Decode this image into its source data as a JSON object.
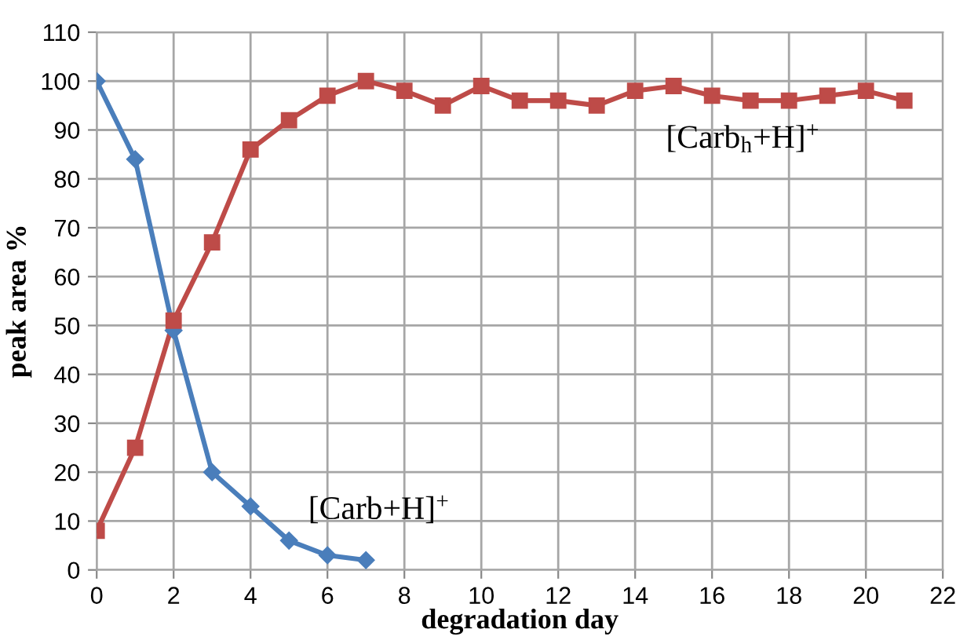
{
  "chart_data": {
    "type": "line",
    "xlabel": "degradation day",
    "ylabel": "peak area %",
    "x": [
      0,
      1,
      2,
      3,
      4,
      5,
      6,
      7,
      8,
      9,
      10,
      11,
      12,
      13,
      14,
      15,
      16,
      17,
      18,
      19,
      20,
      21
    ],
    "series": [
      {
        "name": "[Carb+H]$^{+}$",
        "color": "#4a7ebb",
        "marker": "diamond",
        "x": [
          0,
          1,
          2,
          3,
          4,
          5,
          6,
          7
        ],
        "values": [
          100,
          84,
          49,
          20,
          13,
          6,
          3,
          2
        ]
      },
      {
        "name": "[Carb$_{h}$+H]$^{+}$",
        "color": "#be4b48",
        "marker": "square",
        "values": [
          8,
          25,
          51,
          67,
          86,
          92,
          97,
          100,
          98,
          95,
          99,
          96,
          96,
          95,
          98,
          99,
          97,
          96,
          96,
          97,
          98,
          96
        ]
      }
    ],
    "xlim": [
      0,
      22
    ],
    "xticks": [
      0,
      2,
      4,
      6,
      8,
      10,
      12,
      14,
      16,
      18,
      20,
      22
    ],
    "ylim": [
      0,
      110
    ],
    "yticks": [
      0,
      10,
      20,
      30,
      40,
      50,
      60,
      70,
      80,
      90,
      100,
      110
    ],
    "grid": true,
    "legend": false,
    "line_style": "solid"
  }
}
